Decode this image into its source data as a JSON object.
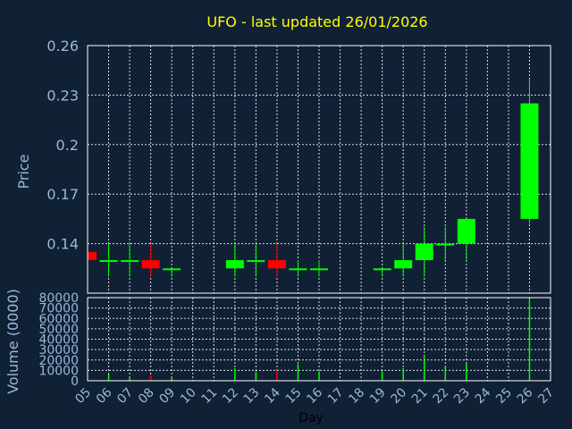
{
  "chart_data": {
    "type": "candlestick",
    "title": "UFO - last updated 26/01/2026",
    "xlabel": "Day",
    "ylabel_price": "Price",
    "ylabel_volume": "Volume (0000)",
    "x_ticks": [
      "05",
      "06",
      "07",
      "08",
      "09",
      "10",
      "11",
      "12",
      "13",
      "14",
      "15",
      "16",
      "17",
      "18",
      "19",
      "20",
      "21",
      "22",
      "23",
      "24",
      "25",
      "26",
      "27"
    ],
    "price_ticks": [
      0.14,
      0.17,
      0.2,
      0.23,
      0.26
    ],
    "price_tick_labels": [
      "0.14",
      "0.17",
      "0.2",
      "0.23",
      "0.26"
    ],
    "price_ylim": [
      0.11,
      0.26
    ],
    "volume_ticks": [
      0,
      10000,
      20000,
      30000,
      40000,
      50000,
      60000,
      70000,
      80000
    ],
    "volume_tick_labels": [
      "0",
      "10000",
      "20000",
      "30000",
      "40000",
      "50000",
      "60000",
      "70000",
      "80000"
    ],
    "volume_ylim": [
      0,
      80000
    ],
    "grid": true,
    "colors": {
      "up": "#00ff00",
      "down": "#ff0000",
      "title": "#ffff00",
      "axis_text": "#9ab8d8",
      "background": "#102035"
    },
    "candles": [
      {
        "day": "05",
        "open": 0.135,
        "close": 0.13,
        "high": 0.135,
        "low": 0.13,
        "volume": 0
      },
      {
        "day": "06",
        "open": 0.13,
        "close": 0.13,
        "high": 0.14,
        "low": 0.12,
        "volume": 6000
      },
      {
        "day": "07",
        "open": 0.13,
        "close": 0.13,
        "high": 0.14,
        "low": 0.12,
        "volume": 3000
      },
      {
        "day": "08",
        "open": 0.13,
        "close": 0.125,
        "high": 0.14,
        "low": 0.12,
        "volume": 5000
      },
      {
        "day": "09",
        "open": 0.125,
        "close": 0.125,
        "high": 0.125,
        "low": 0.12,
        "volume": 3000
      },
      {
        "day": "12",
        "open": 0.125,
        "close": 0.13,
        "high": 0.14,
        "low": 0.12,
        "volume": 12000
      },
      {
        "day": "13",
        "open": 0.13,
        "close": 0.13,
        "high": 0.14,
        "low": 0.12,
        "volume": 9000
      },
      {
        "day": "14",
        "open": 0.13,
        "close": 0.125,
        "high": 0.14,
        "low": 0.12,
        "volume": 10000
      },
      {
        "day": "15",
        "open": 0.125,
        "close": 0.125,
        "high": 0.13,
        "low": 0.12,
        "volume": 16000
      },
      {
        "day": "16",
        "open": 0.125,
        "close": 0.125,
        "high": 0.13,
        "low": 0.12,
        "volume": 9000
      },
      {
        "day": "19",
        "open": 0.125,
        "close": 0.125,
        "high": 0.125,
        "low": 0.12,
        "volume": 9000
      },
      {
        "day": "20",
        "open": 0.125,
        "close": 0.13,
        "high": 0.14,
        "low": 0.12,
        "volume": 12000
      },
      {
        "day": "21",
        "open": 0.13,
        "close": 0.14,
        "high": 0.15,
        "low": 0.12,
        "volume": 23000
      },
      {
        "day": "22",
        "open": 0.14,
        "close": 0.14,
        "high": 0.15,
        "low": 0.13,
        "volume": 13000
      },
      {
        "day": "23",
        "open": 0.14,
        "close": 0.155,
        "high": 0.155,
        "low": 0.13,
        "volume": 17000
      },
      {
        "day": "26",
        "open": 0.155,
        "close": 0.225,
        "high": 0.24,
        "low": 0.152,
        "volume": 78000
      }
    ]
  }
}
